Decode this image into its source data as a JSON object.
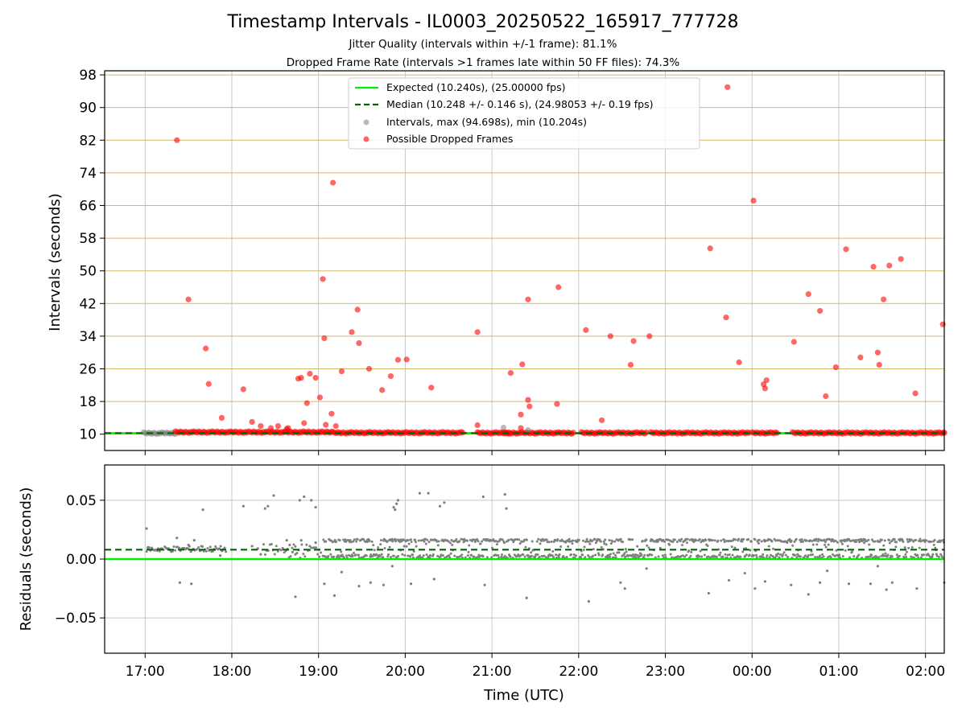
{
  "title": "Timestamp Intervals - IL0003_20250522_165917_777728",
  "subtitle_1": "Jitter Quality (intervals within +/-1 frame): 81.1%",
  "subtitle_2": "Dropped Frame Rate (intervals >1 frames late within 50 FF files): 74.3%",
  "colors": {
    "expected": "#00ee00",
    "median": "#006400",
    "intervals": "#808080",
    "dropped": "#ff0000",
    "top_grid": "#d4b86a",
    "grid": "#c8c8c8"
  },
  "chart_data": [
    {
      "type": "scatter",
      "title": "",
      "xlabel": "",
      "ylabel": "Intervals (seconds)",
      "x_start": "16:32",
      "x_end": "02:13",
      "ylim": [
        6,
        99
      ],
      "x_ticks": [
        "17:00",
        "18:00",
        "19:00",
        "20:00",
        "21:00",
        "22:00",
        "23:00",
        "00:00",
        "01:00",
        "02:00"
      ],
      "y_ticks": [
        "10",
        "18",
        "26",
        "34",
        "42",
        "50",
        "58",
        "66",
        "74",
        "82",
        "90",
        "98"
      ],
      "grid": true,
      "legend_position": "top-center",
      "legend": [
        "Expected (10.240s), (25.00000 fps)",
        "Median (10.248 +/- 0.146 s), (24.98053 +/- 0.19 fps)",
        "Intervals, max (94.698s), min (10.204s)",
        "Possible Dropped Frames"
      ],
      "expected_interval": 10.24,
      "median_interval": 10.248,
      "baseline_segments": [
        {
          "series": "Intervals",
          "start": "16:59",
          "end": "17:21",
          "value": 10.24
        },
        {
          "series": "Possible Dropped Frames",
          "start": "17:21",
          "end": "19:10",
          "value": 10.5
        },
        {
          "series": "Possible Dropped Frames",
          "start": "19:10",
          "end": "20:40",
          "value": 10.35
        },
        {
          "series": "Possible Dropped Frames",
          "start": "20:50",
          "end": "21:12",
          "value": 10.3
        },
        {
          "series": "Possible Dropped Frames",
          "start": "21:08",
          "end": "21:57",
          "value": 10.3
        },
        {
          "series": "Possible Dropped Frames",
          "start": "22:02",
          "end": "22:48",
          "value": 10.3
        },
        {
          "series": "Possible Dropped Frames",
          "start": "22:50",
          "end": "23:58",
          "value": 10.3
        },
        {
          "series": "Possible Dropped Frames",
          "start": "00:00",
          "end": "00:18",
          "value": 10.3
        },
        {
          "series": "Possible Dropped Frames",
          "start": "00:28",
          "end": "02:13",
          "value": 10.3
        }
      ],
      "series": [
        {
          "name": "Possible Dropped Frames",
          "points": [
            [
              "17:22",
              82
            ],
            [
              "17:30",
              43
            ],
            [
              "17:42",
              31
            ],
            [
              "17:44",
              22.3
            ],
            [
              "17:53",
              14
            ],
            [
              "18:08",
              21
            ],
            [
              "18:14",
              13
            ],
            [
              "18:20",
              12
            ],
            [
              "18:27",
              11.5
            ],
            [
              "18:32",
              12
            ],
            [
              "18:38",
              11.3
            ],
            [
              "18:46",
              23.6
            ],
            [
              "18:48",
              23.8
            ],
            [
              "18:50",
              12.7
            ],
            [
              "18:52",
              17.6
            ],
            [
              "18:54",
              24.8
            ],
            [
              "18:58",
              23.8
            ],
            [
              "18:39",
              11.5
            ],
            [
              "19:01",
              19
            ],
            [
              "19:04",
              33.5
            ],
            [
              "19:05",
              12.3
            ],
            [
              "19:12",
              12
            ],
            [
              "19:03",
              48
            ],
            [
              "19:09",
              15
            ],
            [
              "19:10",
              71.6
            ],
            [
              "19:16",
              25.4
            ],
            [
              "19:23",
              35
            ],
            [
              "19:27",
              40.5
            ],
            [
              "19:28",
              32.3
            ],
            [
              "19:35",
              26
            ],
            [
              "19:44",
              20.8
            ],
            [
              "19:50",
              24.2
            ],
            [
              "19:55",
              28.2
            ],
            [
              "20:01",
              28.3
            ],
            [
              "20:18",
              21.4
            ],
            [
              "20:50",
              35
            ],
            [
              "20:50",
              12.2
            ],
            [
              "21:13",
              25
            ],
            [
              "21:20",
              14.8
            ],
            [
              "21:20",
              11.5
            ],
            [
              "21:21",
              27.1
            ],
            [
              "21:25",
              43
            ],
            [
              "21:25",
              18.4
            ],
            [
              "21:26",
              16.8
            ],
            [
              "21:46",
              46
            ],
            [
              "21:45",
              17.4
            ],
            [
              "22:05",
              35.5
            ],
            [
              "22:16",
              13.4
            ],
            [
              "22:22",
              34
            ],
            [
              "22:36",
              27
            ],
            [
              "22:38",
              32.8
            ],
            [
              "22:49",
              34
            ],
            [
              "23:31",
              55.5
            ],
            [
              "23:42",
              38.6
            ],
            [
              "23:43",
              95
            ],
            [
              "23:51",
              27.6
            ],
            [
              "00:01",
              67.2
            ],
            [
              "00:08",
              22.2
            ],
            [
              "00:09",
              21.2
            ],
            [
              "00:10",
              23.2
            ],
            [
              "00:29",
              32.6
            ],
            [
              "00:39",
              44.3
            ],
            [
              "00:47",
              40.2
            ],
            [
              "00:51",
              19.3
            ],
            [
              "00:58",
              26.4
            ],
            [
              "01:05",
              55.3
            ],
            [
              "01:15",
              28.8
            ],
            [
              "01:24",
              51
            ],
            [
              "01:27",
              30
            ],
            [
              "01:28",
              27
            ],
            [
              "01:31",
              43
            ],
            [
              "01:35",
              51.3
            ],
            [
              "01:43",
              52.9
            ],
            [
              "01:53",
              20
            ],
            [
              "02:12",
              36.9
            ],
            [
              "02:13",
              10.3
            ]
          ]
        },
        {
          "name": "Intervals",
          "points": [
            [
              "21:08",
              11.6
            ],
            [
              "21:25",
              11
            ]
          ]
        }
      ]
    },
    {
      "type": "scatter",
      "title": "",
      "xlabel": "Time (UTC)",
      "ylabel": "Residuals (seconds)",
      "x_start": "16:32",
      "x_end": "02:13",
      "ylim": [
        -0.08,
        0.08
      ],
      "x_ticks": [
        "17:00",
        "18:00",
        "19:00",
        "20:00",
        "21:00",
        "22:00",
        "23:00",
        "00:00",
        "01:00",
        "02:00"
      ],
      "y_ticks": [
        "−0.05",
        "0.00",
        "0.05"
      ],
      "grid": true,
      "expected_residual": 0,
      "median_residual": 0.008,
      "dense_band": {
        "start": "19:03",
        "end": "02:13",
        "low": 0.001,
        "high": 0.017
      },
      "series": [
        {
          "name": "Residuals",
          "points": [
            [
              "17:01",
              0.026
            ],
            [
              "17:02",
              0.01
            ],
            [
              "17:08",
              0.008
            ],
            [
              "17:15",
              0.009
            ],
            [
              "17:22",
              0.018
            ],
            [
              "17:24",
              -0.02
            ],
            [
              "17:30",
              0.012
            ],
            [
              "17:32",
              -0.021
            ],
            [
              "17:34",
              0.016
            ],
            [
              "17:39",
              0.011
            ],
            [
              "17:40",
              0.042
            ],
            [
              "17:48",
              0.008
            ],
            [
              "17:52",
              0.003
            ],
            [
              "18:08",
              0.045
            ],
            [
              "18:14",
              0.011
            ],
            [
              "18:18",
              0.009
            ],
            [
              "18:20",
              0.004
            ],
            [
              "18:23",
              0.043
            ],
            [
              "18:25",
              0.045
            ],
            [
              "18:29",
              0.054
            ],
            [
              "18:38",
              0.016
            ],
            [
              "18:40",
              0.012
            ],
            [
              "18:42",
              0.006
            ],
            [
              "18:44",
              0.004
            ],
            [
              "18:48",
              0.016
            ],
            [
              "18:54",
              0.011
            ],
            [
              "18:58",
              0.014
            ],
            [
              "19:00",
              0.008
            ],
            [
              "18:44",
              -0.032
            ],
            [
              "18:47",
              0.05
            ],
            [
              "18:50",
              0.053
            ],
            [
              "18:55",
              0.05
            ],
            [
              "18:58",
              0.044
            ],
            [
              "19:04",
              -0.021
            ],
            [
              "19:11",
              -0.031
            ],
            [
              "19:16",
              -0.011
            ],
            [
              "19:28",
              -0.023
            ],
            [
              "19:36",
              -0.02
            ],
            [
              "19:45",
              -0.022
            ],
            [
              "19:51",
              -0.006
            ],
            [
              "19:52",
              0.044
            ],
            [
              "19:53",
              0.042
            ],
            [
              "19:54",
              0.047
            ],
            [
              "19:55",
              0.05
            ],
            [
              "20:04",
              -0.021
            ],
            [
              "20:10",
              0.056
            ],
            [
              "20:16",
              0.056
            ],
            [
              "20:20",
              -0.017
            ],
            [
              "20:24",
              0.045
            ],
            [
              "20:27",
              0.048
            ],
            [
              "20:54",
              0.053
            ],
            [
              "20:55",
              -0.022
            ],
            [
              "21:09",
              0.055
            ],
            [
              "21:10",
              0.043
            ],
            [
              "21:24",
              -0.033
            ],
            [
              "22:07",
              -0.036
            ],
            [
              "22:29",
              -0.02
            ],
            [
              "22:32",
              -0.025
            ],
            [
              "22:47",
              -0.008
            ],
            [
              "23:30",
              -0.029
            ],
            [
              "23:44",
              -0.018
            ],
            [
              "23:55",
              -0.012
            ],
            [
              "00:02",
              -0.025
            ],
            [
              "00:09",
              -0.019
            ],
            [
              "00:27",
              -0.022
            ],
            [
              "00:39",
              -0.03
            ],
            [
              "00:47",
              -0.02
            ],
            [
              "00:52",
              -0.01
            ],
            [
              "01:07",
              -0.021
            ],
            [
              "01:22",
              -0.021
            ],
            [
              "01:27",
              -0.006
            ],
            [
              "01:33",
              -0.026
            ],
            [
              "01:37",
              -0.02
            ],
            [
              "01:54",
              -0.025
            ],
            [
              "02:13",
              -0.02
            ]
          ]
        }
      ]
    }
  ]
}
